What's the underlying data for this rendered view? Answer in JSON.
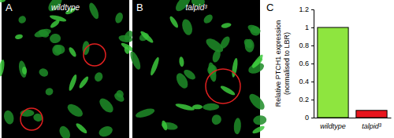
{
  "figure": {
    "panels": [
      {
        "letter": "A",
        "label": "wildtype"
      },
      {
        "letter": "B",
        "label": "talpid³"
      }
    ],
    "chart_panel": "C"
  },
  "chart_data": {
    "type": "bar",
    "ylabel": [
      "Relative PTCH1 expression",
      "(normalised to LBR)"
    ],
    "categories": [
      "wildtype",
      "talpid³"
    ],
    "values": [
      1,
      0.08
    ],
    "colors": [
      "#8ee53f",
      "#e8141c"
    ],
    "ylim": [
      0,
      1.2
    ],
    "yticks": [
      0,
      0.2,
      0.4,
      0.6,
      0.8,
      1,
      1.2
    ],
    "grid": false
  }
}
